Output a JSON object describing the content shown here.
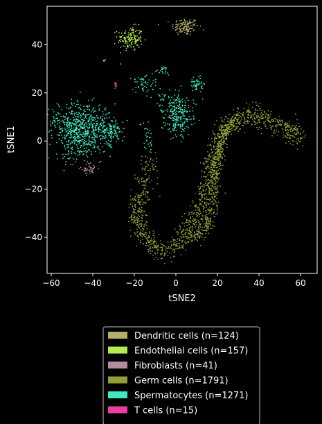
{
  "chart_data": {
    "type": "scatter",
    "title": "",
    "xlabel": "tSNE2",
    "ylabel": "tSNE1",
    "xlim": [
      -62,
      68
    ],
    "ylim": [
      -55,
      56
    ],
    "xticks": [
      -60,
      -40,
      -20,
      0,
      20,
      40,
      60
    ],
    "yticks": [
      -40,
      -20,
      0,
      20,
      40
    ],
    "background": "#000000",
    "axes_color": "#ffffff",
    "grid": false,
    "legend_position": "bottom",
    "series": [
      {
        "name": "Dendritic cells (n=124)",
        "color": "#b5ad6b",
        "n": 124,
        "clusters": [
          {
            "cx": 4.5,
            "cy": 47.5,
            "sx": 3.2,
            "sy": 1.8,
            "n": 124
          }
        ]
      },
      {
        "name": "Endothelial cells (n=157)",
        "color": "#b4eb51",
        "n": 157,
        "clusters": [
          {
            "cx": -22,
            "cy": 42.5,
            "sx": 3.0,
            "sy": 2.5,
            "n": 150
          },
          {
            "cx": -34,
            "cy": 33.5,
            "sx": 0.5,
            "sy": 0.4,
            "n": 4
          },
          {
            "cx": -16,
            "cy": 7,
            "sx": 0.6,
            "sy": 0.5,
            "n": 3
          }
        ]
      },
      {
        "name": "Fibroblasts (n=41)",
        "color": "#b68a9d",
        "n": 41,
        "clusters": [
          {
            "cx": -41.5,
            "cy": -11.5,
            "sx": 2.0,
            "sy": 1.2,
            "n": 41
          }
        ]
      },
      {
        "name": "Germ cells (n=1791)",
        "color": "#949e37",
        "n": 1791,
        "path": [
          [
            -12,
            -6
          ],
          [
            -15,
            -17
          ],
          [
            -18,
            -25
          ],
          [
            -19,
            -31
          ],
          [
            -16,
            -38
          ],
          [
            -12,
            -43
          ],
          [
            -7,
            -46
          ],
          [
            0,
            -44
          ],
          [
            5,
            -38
          ],
          [
            9,
            -31
          ],
          [
            13,
            -24
          ],
          [
            15,
            -20
          ],
          [
            17,
            -12
          ],
          [
            19,
            -4
          ],
          [
            22,
            2
          ],
          [
            25,
            6
          ],
          [
            30,
            9
          ],
          [
            36,
            11
          ],
          [
            41,
            10
          ],
          [
            46,
            8
          ],
          [
            52,
            5
          ],
          [
            56,
            3
          ],
          [
            60,
            3
          ]
        ],
        "path2": [
          [
            6,
            -40
          ],
          [
            12,
            -38
          ],
          [
            16,
            -33
          ],
          [
            18,
            -25
          ],
          [
            19,
            -16
          ],
          [
            20,
            -8
          ],
          [
            21,
            -2
          ],
          [
            23,
            4
          ],
          [
            27,
            8
          ]
        ],
        "spread": 2.2
      },
      {
        "name": "Spermatocytes (n=1271)",
        "color": "#3ee8c0",
        "n": 1271,
        "clusters": [
          {
            "cx": -46,
            "cy": 4.5,
            "sx": 7.0,
            "sy": 5.5,
            "n": 720
          },
          {
            "cx": -32,
            "cy": 4.5,
            "sx": 3.5,
            "sy": 2.5,
            "n": 120
          },
          {
            "cx": 1,
            "cy": 11,
            "sx": 3.5,
            "sy": 4.5,
            "n": 260
          },
          {
            "cx": 10,
            "cy": 23.5,
            "sx": 1.6,
            "sy": 1.6,
            "n": 50
          },
          {
            "cx": -15,
            "cy": 24,
            "sx": 3.0,
            "sy": 1.8,
            "n": 50
          },
          {
            "cx": -6,
            "cy": 29,
            "sx": 1.5,
            "sy": 1.0,
            "n": 22
          },
          {
            "cx": -13,
            "cy": 0.5,
            "sx": 1.0,
            "sy": 3.0,
            "n": 25
          },
          {
            "cx": -7,
            "cy": 18,
            "sx": 1.6,
            "sy": 2.0,
            "n": 24
          }
        ]
      },
      {
        "name": "T cells (n=15)",
        "color": "#e840a0",
        "n": 15,
        "clusters": [
          {
            "cx": -29,
            "cy": 23.5,
            "sx": 0.25,
            "sy": 0.6,
            "n": 15
          }
        ]
      }
    ]
  }
}
